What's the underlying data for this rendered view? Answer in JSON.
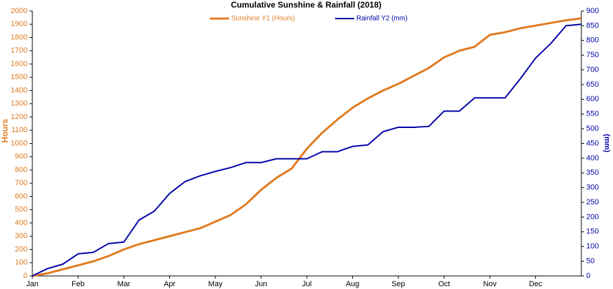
{
  "chart_data": {
    "type": "line",
    "title": "Cumulative Sunshine & Rainfall (2018)",
    "y_label": "Hours",
    "y2_label": "(mm)",
    "categories": [
      "Jan",
      null,
      null,
      "Feb",
      null,
      null,
      "Mar",
      null,
      null,
      "Apr",
      null,
      null,
      "May",
      null,
      null,
      "Jun",
      null,
      null,
      "Jul",
      null,
      null,
      "Aug",
      null,
      null,
      "Sep",
      null,
      null,
      "Oct",
      null,
      null,
      "Nov",
      null,
      null,
      "Dec",
      null,
      null,
      null
    ],
    "series": [
      {
        "name": "Sunshine Y1 (Hours)",
        "color": "#e07b20",
        "axis": "y",
        "values": [
          0,
          20,
          50,
          80,
          110,
          150,
          200,
          240,
          270,
          300,
          330,
          360,
          410,
          460,
          540,
          650,
          740,
          810,
          960,
          1080,
          1180,
          1270,
          1340,
          1400,
          1450,
          1510,
          1570,
          1650,
          1700,
          1730,
          1820,
          1840,
          1870,
          1890,
          1910,
          1930,
          1945
        ]
      },
      {
        "name": "Rainfall Y2 (mm)",
        "color": "#0000aa",
        "axis": "y2",
        "values": [
          0,
          25,
          40,
          75,
          80,
          110,
          115,
          190,
          220,
          280,
          320,
          340,
          355,
          368,
          385,
          385,
          398,
          398,
          398,
          422,
          422,
          440,
          445,
          490,
          505,
          505,
          508,
          560,
          560,
          605,
          605,
          605,
          670,
          740,
          790,
          850,
          855
        ]
      }
    ],
    "ylim": [
      0,
      2000
    ],
    "yticks": [
      0,
      100,
      200,
      300,
      400,
      500,
      600,
      700,
      800,
      900,
      1000,
      1100,
      1200,
      1300,
      1400,
      1500,
      1600,
      1700,
      1800,
      1900,
      2000
    ],
    "y2lim": [
      0,
      900
    ],
    "y2ticks": [
      0,
      50,
      100,
      150,
      200,
      250,
      300,
      350,
      400,
      450,
      500,
      550,
      600,
      650,
      700,
      750,
      800,
      850,
      900
    ],
    "grid": false,
    "legend": "top"
  }
}
